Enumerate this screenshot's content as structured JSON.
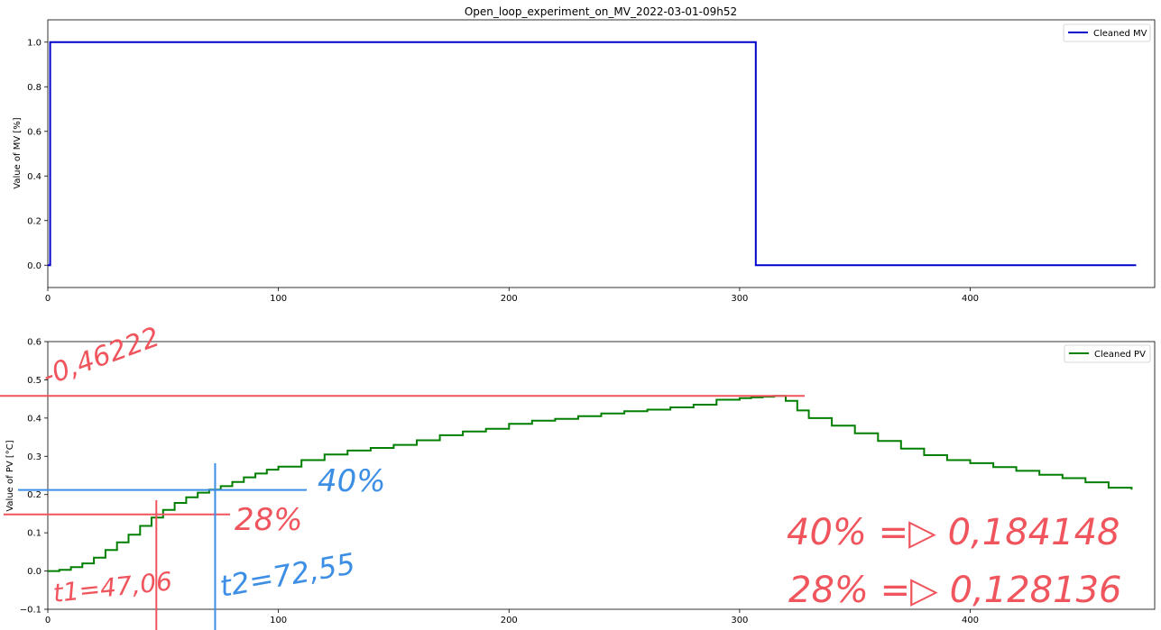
{
  "chart_data": [
    {
      "type": "line",
      "title": "Open_loop_experiment_on_MV_2022-03-01-09h52",
      "xlabel": "",
      "ylabel": "Value of MV [%]",
      "xlim": [
        0,
        480
      ],
      "ylim": [
        -0.1,
        1.1
      ],
      "xticks": [
        0,
        100,
        200,
        300,
        400
      ],
      "yticks": [
        0.0,
        0.2,
        0.4,
        0.6,
        0.8,
        1.0
      ],
      "xtick_labels": [
        "0",
        "100",
        "200",
        "300",
        "400"
      ],
      "ytick_labels": [
        "0.0",
        "0.2",
        "0.4",
        "0.6",
        "0.8",
        "1.0"
      ],
      "legend_position": "top-right",
      "grid": false,
      "series": [
        {
          "name": "Cleaned MV",
          "color": "#0000cc",
          "step": true,
          "x": [
            0,
            1,
            1,
            307,
            307,
            472
          ],
          "y": [
            0,
            0,
            1,
            1,
            0,
            0
          ]
        }
      ]
    },
    {
      "type": "line",
      "title": "",
      "xlabel": "",
      "ylabel": "Value of PV [°C]",
      "xlim": [
        0,
        480
      ],
      "ylim": [
        -0.1,
        0.6
      ],
      "xticks": [
        0,
        100,
        200,
        300,
        400
      ],
      "yticks": [
        -0.1,
        0.0,
        0.1,
        0.2,
        0.3,
        0.4,
        0.5,
        0.6
      ],
      "xtick_labels": [
        "0",
        "100",
        "200",
        "300",
        "400"
      ],
      "ytick_labels": [
        "−0.1",
        "0.0",
        "0.1",
        "0.2",
        "0.3",
        "0.4",
        "0.5",
        "0.6"
      ],
      "legend_position": "top-right",
      "grid": false,
      "series": [
        {
          "name": "Cleaned PV",
          "color": "#007f00",
          "step": true,
          "x": [
            0,
            5,
            10,
            15,
            20,
            25,
            30,
            35,
            40,
            45,
            50,
            55,
            60,
            65,
            70,
            75,
            80,
            85,
            90,
            95,
            100,
            110,
            120,
            130,
            140,
            150,
            160,
            170,
            180,
            190,
            200,
            210,
            220,
            230,
            240,
            250,
            260,
            270,
            280,
            290,
            300,
            305,
            310,
            315,
            320,
            325,
            330,
            340,
            350,
            360,
            370,
            380,
            390,
            400,
            410,
            420,
            430,
            440,
            450,
            460,
            470
          ],
          "y": [
            0.0,
            0.003,
            0.01,
            0.02,
            0.035,
            0.055,
            0.075,
            0.095,
            0.118,
            0.14,
            0.16,
            0.178,
            0.193,
            0.205,
            0.213,
            0.222,
            0.233,
            0.245,
            0.255,
            0.265,
            0.273,
            0.29,
            0.305,
            0.315,
            0.322,
            0.33,
            0.342,
            0.355,
            0.365,
            0.372,
            0.385,
            0.393,
            0.398,
            0.405,
            0.412,
            0.418,
            0.422,
            0.428,
            0.435,
            0.448,
            0.452,
            0.454,
            0.456,
            0.458,
            0.445,
            0.42,
            0.4,
            0.38,
            0.36,
            0.34,
            0.32,
            0.303,
            0.29,
            0.282,
            0.272,
            0.262,
            0.252,
            0.243,
            0.232,
            0.218,
            0.213
          ]
        }
      ]
    }
  ],
  "annotations": {
    "handwritten": [
      {
        "text": "-0,46222",
        "color": "#f0545c"
      },
      {
        "text": "40%",
        "color": "#3d8fe6"
      },
      {
        "text": "28%",
        "color": "#f0545c"
      },
      {
        "text": "t1=47,06",
        "color": "#f0545c"
      },
      {
        "text": "t2=72,55",
        "color": "#3d8fe6"
      },
      {
        "text": "40% =▷ 0,184148",
        "color": "#f0545c"
      },
      {
        "text": "28% =▷ 0,128136",
        "color": "#f0545c"
      }
    ],
    "guides": [
      {
        "kind": "hline",
        "value": 0.458,
        "color": "#f0545c"
      },
      {
        "kind": "hline",
        "value": 0.212,
        "color": "#3d8fe6"
      },
      {
        "kind": "hline",
        "value": 0.148,
        "color": "#f0545c"
      },
      {
        "kind": "vline",
        "value": 47.06,
        "color": "#f0545c"
      },
      {
        "kind": "vline",
        "value": 72.55,
        "color": "#3d8fe6"
      }
    ]
  }
}
